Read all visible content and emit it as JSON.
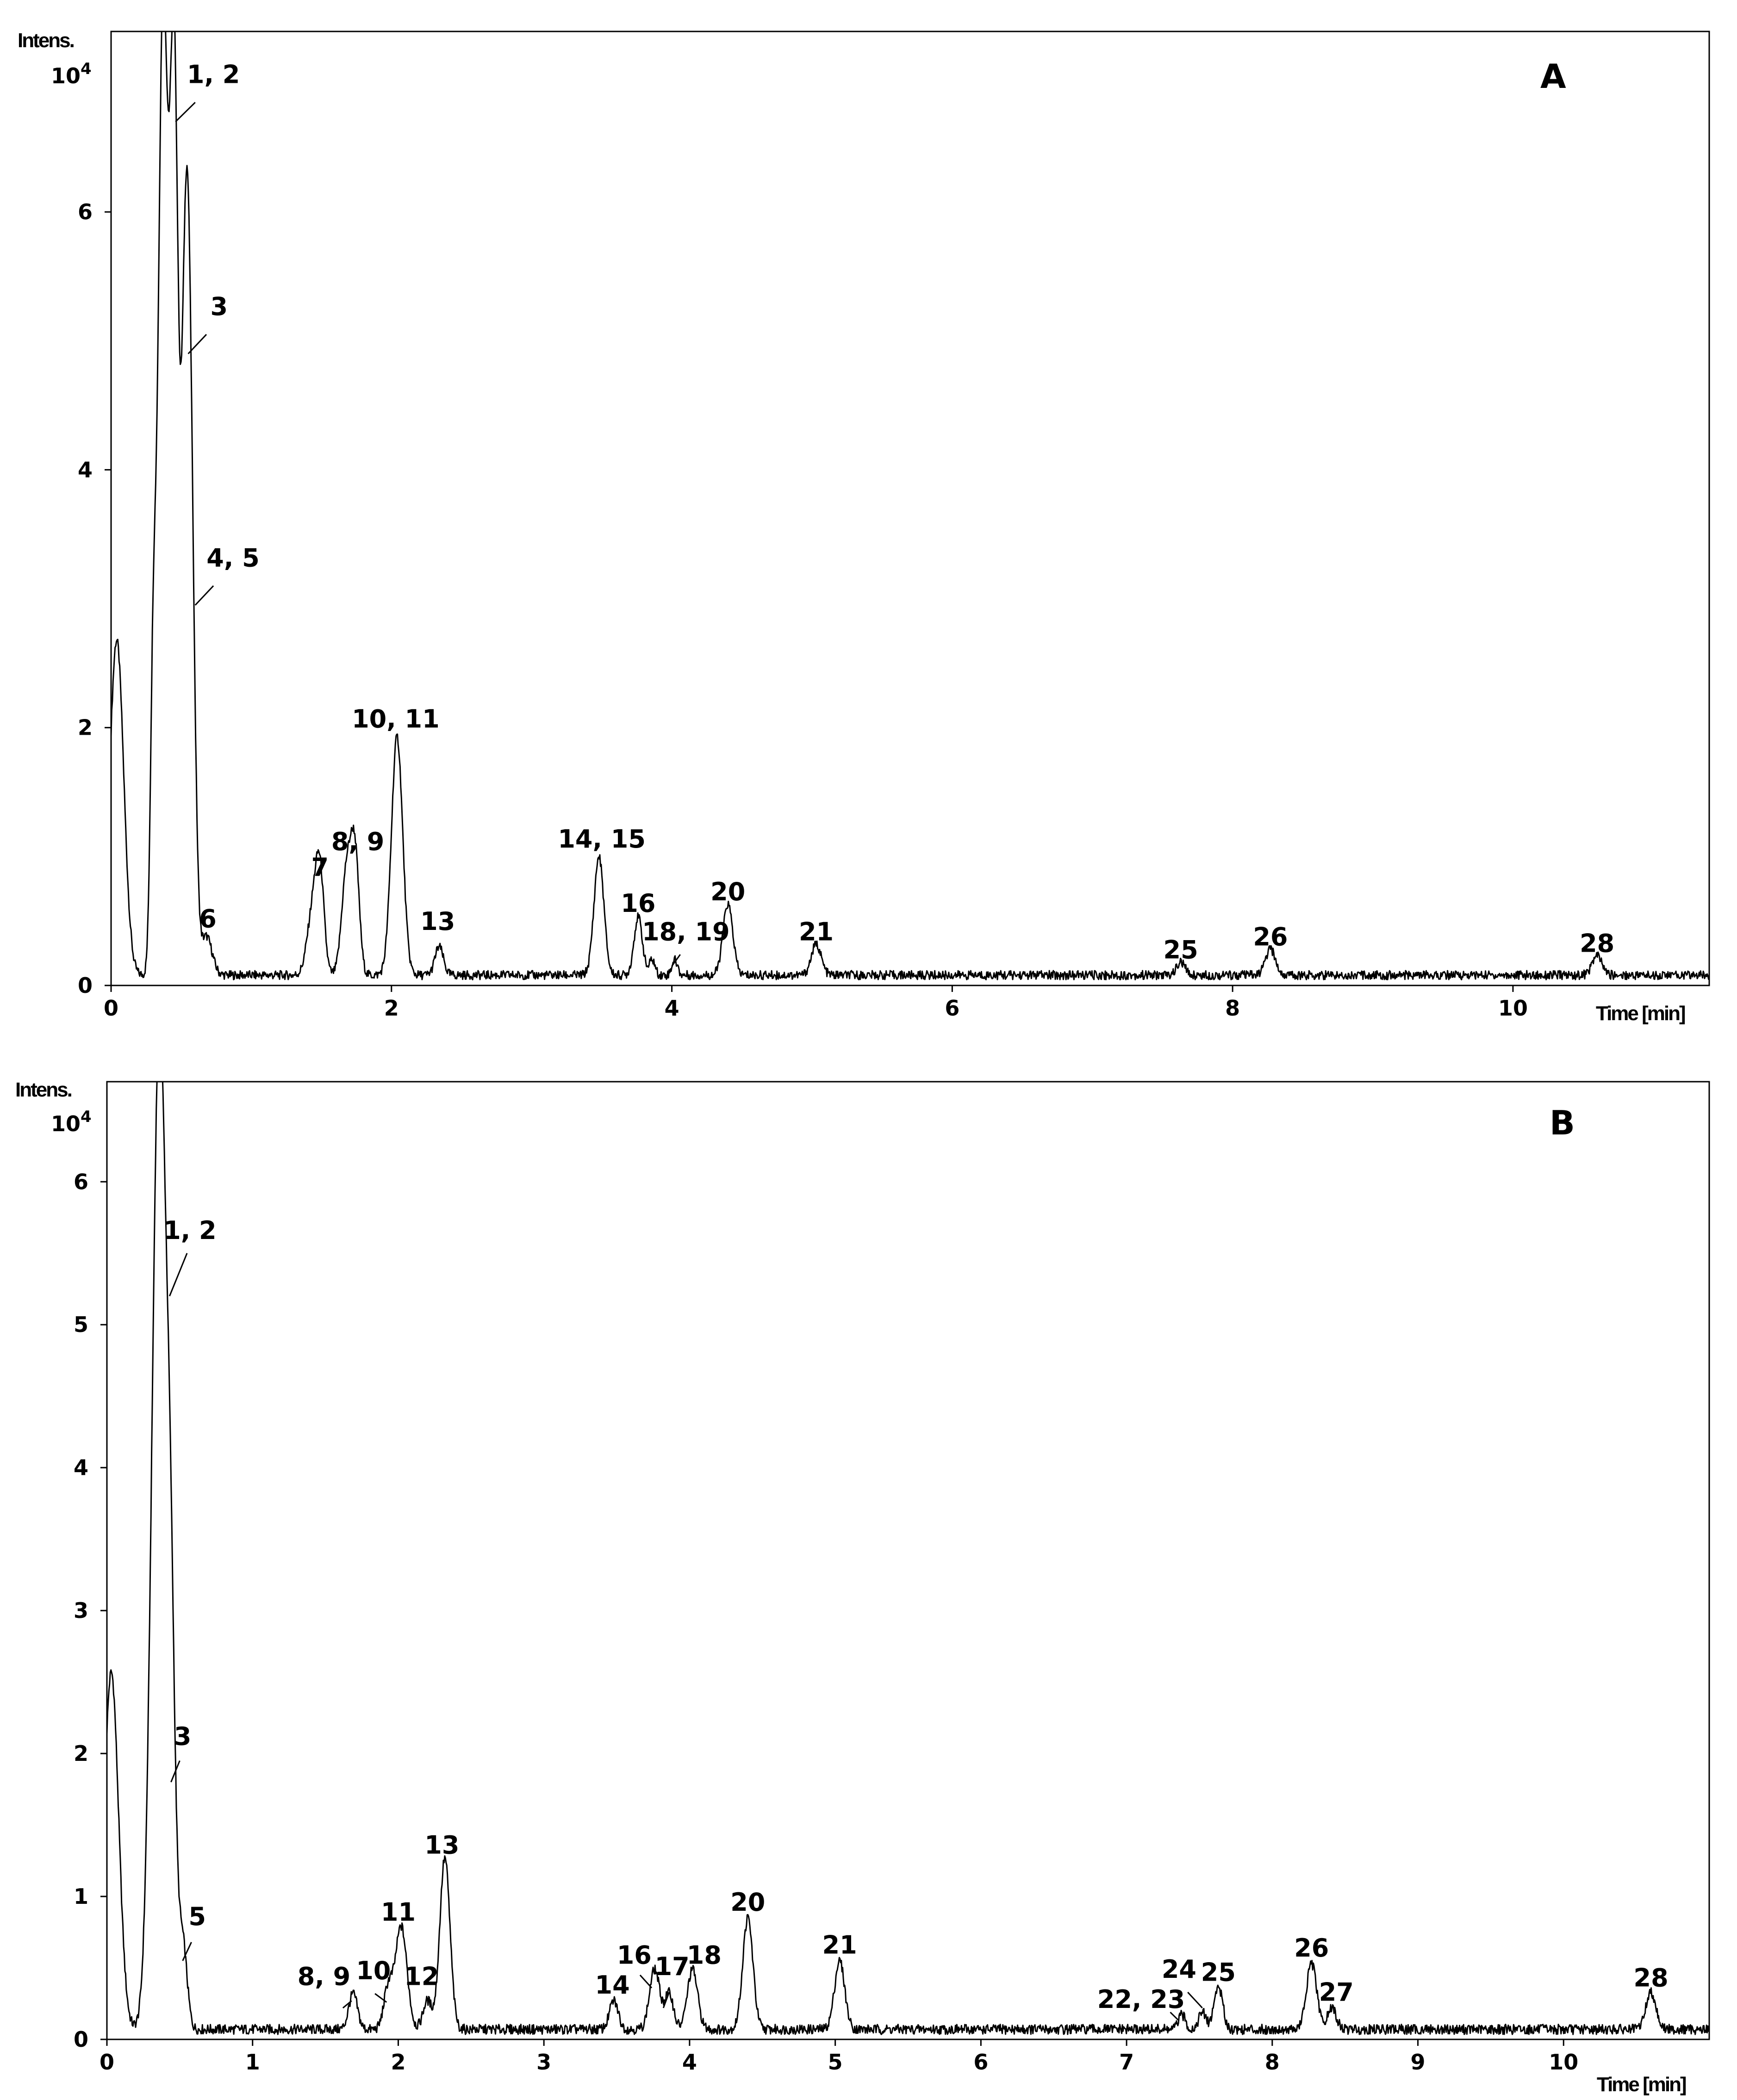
{
  "chart_data": [
    {
      "type": "line",
      "panel": "A",
      "ylabel": "Intens.",
      "yunit": "10",
      "yunit_exp": "4",
      "xlabel": "Time [min]",
      "xlim": [
        0,
        11.4
      ],
      "ylim": [
        0,
        7.4
      ],
      "xticks": [
        0,
        2,
        4,
        6,
        8,
        10
      ],
      "xtick_labels": [
        "0",
        "2",
        "4",
        "6",
        "8",
        "10"
      ],
      "yticks": [
        0,
        2,
        4,
        6
      ],
      "ytick_labels": [
        "0",
        "2",
        "4",
        "6"
      ],
      "baseline": 0.08,
      "peaks": [
        {
          "x": 0.04,
          "y": 2.6,
          "w": 0.05
        },
        {
          "x": 0.3,
          "y": 2.0,
          "w": 0.02
        },
        {
          "x": 0.37,
          "y": 7.5,
          "w": 0.035
        },
        {
          "x": 0.45,
          "y": 6.8,
          "w": 0.03
        },
        {
          "x": 0.53,
          "y": 4.7,
          "w": 0.03
        },
        {
          "x": 0.57,
          "y": 2.9,
          "w": 0.03
        },
        {
          "x": 0.68,
          "y": 0.3,
          "w": 0.04
        },
        {
          "x": 1.44,
          "y": 0.5,
          "w": 0.04
        },
        {
          "x": 1.49,
          "y": 0.7,
          "w": 0.03
        },
        {
          "x": 1.68,
          "y": 0.8,
          "w": 0.035
        },
        {
          "x": 1.74,
          "y": 0.9,
          "w": 0.03
        },
        {
          "x": 2.04,
          "y": 1.85,
          "w": 0.04
        },
        {
          "x": 2.34,
          "y": 0.22,
          "w": 0.03
        },
        {
          "x": 3.48,
          "y": 0.92,
          "w": 0.035
        },
        {
          "x": 3.76,
          "y": 0.45,
          "w": 0.03
        },
        {
          "x": 3.86,
          "y": 0.12,
          "w": 0.02
        },
        {
          "x": 4.02,
          "y": 0.12,
          "w": 0.02
        },
        {
          "x": 4.4,
          "y": 0.55,
          "w": 0.035
        },
        {
          "x": 5.03,
          "y": 0.24,
          "w": 0.035
        },
        {
          "x": 7.63,
          "y": 0.1,
          "w": 0.03
        },
        {
          "x": 8.27,
          "y": 0.2,
          "w": 0.035
        },
        {
          "x": 10.6,
          "y": 0.15,
          "w": 0.035
        }
      ],
      "peak_labels": [
        {
          "text": "1, 2",
          "x": 0.73,
          "y": 7.0,
          "lx1": 0.46,
          "ly1": 6.7,
          "lx2": 0.6,
          "ly2": 6.85
        },
        {
          "text": "3",
          "x": 0.77,
          "y": 5.2,
          "lx1": 0.55,
          "ly1": 4.9,
          "lx2": 0.68,
          "ly2": 5.05
        },
        {
          "text": "4, 5",
          "x": 0.87,
          "y": 3.25,
          "lx1": 0.6,
          "ly1": 2.95,
          "lx2": 0.73,
          "ly2": 3.1
        },
        {
          "text": "6",
          "x": 0.69,
          "y": 0.45
        },
        {
          "text": "7",
          "x": 1.49,
          "y": 0.85
        },
        {
          "text": "8, 9",
          "x": 1.76,
          "y": 1.05
        },
        {
          "text": "10, 11",
          "x": 2.03,
          "y": 2.0
        },
        {
          "text": "13",
          "x": 2.33,
          "y": 0.43
        },
        {
          "text": "14, 15",
          "x": 3.5,
          "y": 1.07
        },
        {
          "text": "16",
          "x": 3.76,
          "y": 0.57
        },
        {
          "text": "18, 19",
          "x": 4.1,
          "y": 0.35,
          "lx1": 4.0,
          "ly1": 0.15,
          "lx2": 4.06,
          "ly2": 0.24
        },
        {
          "text": "20",
          "x": 4.4,
          "y": 0.66
        },
        {
          "text": "21",
          "x": 5.03,
          "y": 0.35
        },
        {
          "text": "25",
          "x": 7.63,
          "y": 0.21
        },
        {
          "text": "26",
          "x": 8.27,
          "y": 0.31
        },
        {
          "text": "28",
          "x": 10.6,
          "y": 0.26
        }
      ]
    },
    {
      "type": "line",
      "panel": "B",
      "ylabel": "Intens.",
      "yunit": "10",
      "yunit_exp": "4",
      "xlabel": "Time [min]",
      "xlim": [
        0,
        11.0
      ],
      "ylim": [
        0,
        6.7
      ],
      "xticks": [
        0,
        1,
        2,
        3,
        4,
        5,
        6,
        7,
        8,
        9,
        10
      ],
      "xtick_labels": [
        "0",
        "1",
        "2",
        "3",
        "4",
        "5",
        "6",
        "7",
        "8",
        "9",
        "10"
      ],
      "yticks": [
        0,
        1,
        2,
        3,
        4,
        5,
        6
      ],
      "ytick_labels": [
        "0",
        "1",
        "2",
        "3",
        "4",
        "5",
        "6"
      ],
      "baseline": 0.07,
      "peaks": [
        {
          "x": 0.03,
          "y": 2.5,
          "w": 0.05
        },
        {
          "x": 0.36,
          "y": 7.0,
          "w": 0.05
        },
        {
          "x": 0.44,
          "y": 1.9,
          "w": 0.03
        },
        {
          "x": 0.52,
          "y": 0.6,
          "w": 0.03
        },
        {
          "x": 1.69,
          "y": 0.25,
          "w": 0.03
        },
        {
          "x": 1.93,
          "y": 0.28,
          "w": 0.03
        },
        {
          "x": 2.02,
          "y": 0.72,
          "w": 0.04
        },
        {
          "x": 2.2,
          "y": 0.2,
          "w": 0.03
        },
        {
          "x": 2.32,
          "y": 1.2,
          "w": 0.035
        },
        {
          "x": 3.48,
          "y": 0.2,
          "w": 0.03
        },
        {
          "x": 3.76,
          "y": 0.42,
          "w": 0.035
        },
        {
          "x": 3.86,
          "y": 0.25,
          "w": 0.03
        },
        {
          "x": 4.02,
          "y": 0.42,
          "w": 0.035
        },
        {
          "x": 4.4,
          "y": 0.78,
          "w": 0.035
        },
        {
          "x": 5.03,
          "y": 0.48,
          "w": 0.035
        },
        {
          "x": 7.38,
          "y": 0.1,
          "w": 0.025
        },
        {
          "x": 7.52,
          "y": 0.12,
          "w": 0.025
        },
        {
          "x": 7.63,
          "y": 0.3,
          "w": 0.03
        },
        {
          "x": 8.27,
          "y": 0.46,
          "w": 0.035
        },
        {
          "x": 8.41,
          "y": 0.15,
          "w": 0.03
        },
        {
          "x": 10.6,
          "y": 0.26,
          "w": 0.035
        }
      ],
      "peak_labels": [
        {
          "text": "1, 2",
          "x": 0.57,
          "y": 5.6,
          "lx1": 0.43,
          "ly1": 5.2,
          "lx2": 0.55,
          "ly2": 5.5
        },
        {
          "text": "3",
          "x": 0.52,
          "y": 2.06,
          "lx1": 0.44,
          "ly1": 1.8,
          "lx2": 0.5,
          "ly2": 1.95
        },
        {
          "text": "5",
          "x": 0.62,
          "y": 0.8,
          "lx1": 0.52,
          "ly1": 0.55,
          "lx2": 0.58,
          "ly2": 0.68
        },
        {
          "text": "8, 9",
          "x": 1.49,
          "y": 0.38,
          "lx1": 1.62,
          "ly1": 0.22,
          "lx2": 1.68,
          "ly2": 0.27
        },
        {
          "text": "10",
          "x": 1.83,
          "y": 0.42,
          "lx1": 1.84,
          "ly1": 0.32,
          "lx2": 1.92,
          "ly2": 0.26
        },
        {
          "text": "11",
          "x": 2.0,
          "y": 0.83
        },
        {
          "text": "12",
          "x": 2.16,
          "y": 0.38
        },
        {
          "text": "13",
          "x": 2.3,
          "y": 1.3
        },
        {
          "text": "14",
          "x": 3.47,
          "y": 0.32
        },
        {
          "text": "16",
          "x": 3.62,
          "y": 0.53,
          "lx1": 3.66,
          "ly1": 0.45,
          "lx2": 3.74,
          "ly2": 0.36
        },
        {
          "text": "17",
          "x": 3.88,
          "y": 0.45,
          "lx1": 3.86,
          "ly1": 0.33,
          "lx2": 3.82,
          "ly2": 0.22
        },
        {
          "text": "18",
          "x": 4.1,
          "y": 0.53
        },
        {
          "text": "20",
          "x": 4.4,
          "y": 0.9
        },
        {
          "text": "21",
          "x": 5.03,
          "y": 0.6
        },
        {
          "text": "22, 23",
          "x": 7.1,
          "y": 0.22,
          "lx1": 7.3,
          "ly1": 0.19,
          "lx2": 7.36,
          "ly2": 0.13
        },
        {
          "text": "24",
          "x": 7.36,
          "y": 0.43,
          "lx1": 7.42,
          "ly1": 0.33,
          "lx2": 7.52,
          "ly2": 0.22
        },
        {
          "text": "25",
          "x": 7.63,
          "y": 0.41
        },
        {
          "text": "26",
          "x": 8.27,
          "y": 0.58
        },
        {
          "text": "27",
          "x": 8.44,
          "y": 0.27
        },
        {
          "text": "28",
          "x": 10.6,
          "y": 0.37
        }
      ]
    }
  ]
}
